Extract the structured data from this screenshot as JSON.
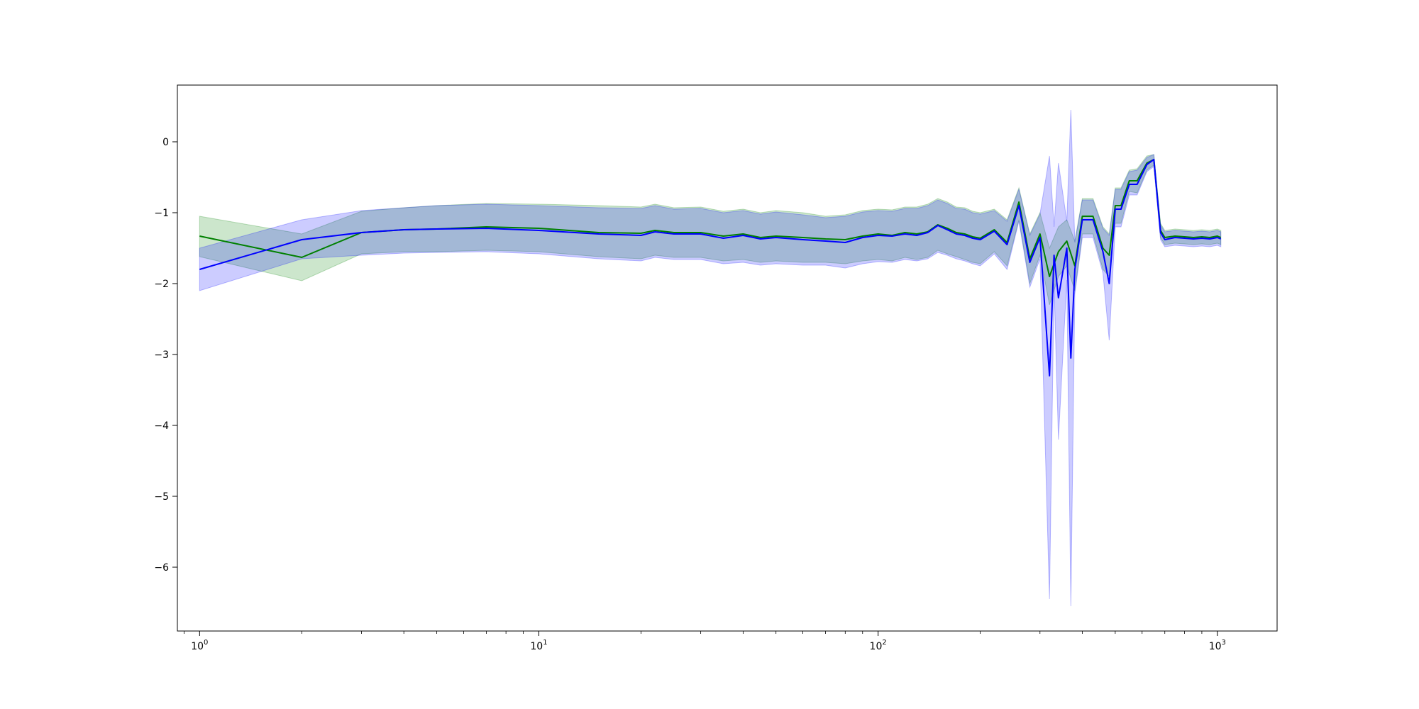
{
  "chart_data": {
    "type": "line",
    "title": "",
    "xlabel": "",
    "ylabel": "",
    "xscale": "log",
    "xlim": [
      0.86,
      1500
    ],
    "ylim": [
      -6.9,
      0.8
    ],
    "grid": false,
    "legend": "none",
    "x_major_ticks": [
      {
        "value": 1,
        "base": "10",
        "exp": "0"
      },
      {
        "value": 10,
        "base": "10",
        "exp": "1"
      },
      {
        "value": 100,
        "base": "10",
        "exp": "2"
      },
      {
        "value": 1000,
        "base": "10",
        "exp": "3"
      }
    ],
    "y_ticks": [
      {
        "value": 0,
        "label": "0"
      },
      {
        "value": -1,
        "label": "−1"
      },
      {
        "value": -2,
        "label": "−2"
      },
      {
        "value": -3,
        "label": "−3"
      },
      {
        "value": -4,
        "label": "−4"
      },
      {
        "value": -5,
        "label": "−5"
      },
      {
        "value": -6,
        "label": "−6"
      }
    ],
    "series": [
      {
        "color": "#008000",
        "band_color": "#008000",
        "x": [
          1,
          2,
          3,
          4,
          5,
          7,
          10,
          15,
          20,
          22,
          25,
          30,
          35,
          40,
          45,
          50,
          60,
          70,
          80,
          90,
          100,
          110,
          120,
          130,
          140,
          150,
          160,
          170,
          180,
          190,
          200,
          220,
          240,
          260,
          280,
          300,
          320,
          340,
          360,
          380,
          400,
          430,
          460,
          480,
          500,
          520,
          550,
          580,
          620,
          650,
          680,
          700,
          750,
          800,
          850,
          900,
          950,
          1000,
          1024
        ],
        "y": [
          -1.33,
          -1.63,
          -1.28,
          -1.24,
          -1.23,
          -1.2,
          -1.22,
          -1.28,
          -1.29,
          -1.25,
          -1.28,
          -1.28,
          -1.33,
          -1.3,
          -1.35,
          -1.33,
          -1.35,
          -1.37,
          -1.38,
          -1.33,
          -1.3,
          -1.32,
          -1.28,
          -1.3,
          -1.27,
          -1.17,
          -1.22,
          -1.28,
          -1.3,
          -1.34,
          -1.36,
          -1.24,
          -1.42,
          -0.85,
          -1.65,
          -1.3,
          -1.9,
          -1.55,
          -1.4,
          -1.75,
          -1.05,
          -1.05,
          -1.5,
          -1.6,
          -0.9,
          -0.9,
          -0.55,
          -0.55,
          -0.3,
          -0.25,
          -1.25,
          -1.35,
          -1.33,
          -1.34,
          -1.35,
          -1.34,
          -1.35,
          -1.33,
          -1.35
        ],
        "upper": [
          -1.05,
          -1.3,
          -0.98,
          -0.93,
          -0.9,
          -0.87,
          -0.88,
          -0.9,
          -0.92,
          -0.88,
          -0.93,
          -0.92,
          -0.98,
          -0.95,
          -1.0,
          -0.97,
          -1.0,
          -1.05,
          -1.03,
          -0.97,
          -0.95,
          -0.96,
          -0.92,
          -0.92,
          -0.88,
          -0.8,
          -0.85,
          -0.92,
          -0.93,
          -0.98,
          -1.0,
          -0.95,
          -1.1,
          -0.65,
          -1.3,
          -1.0,
          -1.5,
          -1.2,
          -1.1,
          -1.4,
          -0.8,
          -0.8,
          -1.2,
          -1.3,
          -0.65,
          -0.65,
          -0.4,
          -0.38,
          -0.2,
          -0.18,
          -1.15,
          -1.25,
          -1.23,
          -1.24,
          -1.25,
          -1.24,
          -1.25,
          -1.23,
          -1.25
        ],
        "lower": [
          -1.62,
          -1.96,
          -1.58,
          -1.55,
          -1.55,
          -1.53,
          -1.55,
          -1.62,
          -1.65,
          -1.6,
          -1.63,
          -1.63,
          -1.68,
          -1.66,
          -1.7,
          -1.68,
          -1.7,
          -1.7,
          -1.72,
          -1.68,
          -1.66,
          -1.68,
          -1.63,
          -1.66,
          -1.63,
          -1.53,
          -1.58,
          -1.62,
          -1.66,
          -1.7,
          -1.72,
          -1.55,
          -1.75,
          -1.1,
          -2.0,
          -1.6,
          -2.3,
          -1.9,
          -1.75,
          -2.1,
          -1.3,
          -1.3,
          -1.8,
          -1.9,
          -1.15,
          -1.15,
          -0.7,
          -0.72,
          -0.4,
          -0.33,
          -1.35,
          -1.45,
          -1.43,
          -1.44,
          -1.45,
          -1.44,
          -1.45,
          -1.43,
          -1.45
        ]
      },
      {
        "color": "#0000ff",
        "band_color": "#0000ff",
        "x": [
          1,
          2,
          3,
          4,
          5,
          7,
          10,
          15,
          20,
          22,
          25,
          30,
          35,
          40,
          45,
          50,
          60,
          70,
          80,
          90,
          100,
          110,
          120,
          130,
          140,
          150,
          160,
          170,
          180,
          190,
          200,
          220,
          240,
          260,
          280,
          300,
          320,
          330,
          340,
          360,
          370,
          380,
          400,
          430,
          460,
          480,
          500,
          520,
          550,
          580,
          620,
          650,
          680,
          700,
          750,
          800,
          850,
          900,
          950,
          1000,
          1024
        ],
        "y": [
          -1.8,
          -1.38,
          -1.28,
          -1.24,
          -1.23,
          -1.22,
          -1.25,
          -1.3,
          -1.32,
          -1.27,
          -1.3,
          -1.3,
          -1.36,
          -1.32,
          -1.37,
          -1.35,
          -1.38,
          -1.4,
          -1.42,
          -1.35,
          -1.32,
          -1.33,
          -1.3,
          -1.32,
          -1.28,
          -1.18,
          -1.24,
          -1.3,
          -1.32,
          -1.36,
          -1.38,
          -1.26,
          -1.45,
          -0.9,
          -1.7,
          -1.35,
          -3.3,
          -1.6,
          -2.2,
          -1.5,
          -3.05,
          -1.8,
          -1.1,
          -1.1,
          -1.55,
          -2.0,
          -0.95,
          -0.95,
          -0.6,
          -0.6,
          -0.32,
          -0.25,
          -1.28,
          -1.38,
          -1.35,
          -1.36,
          -1.37,
          -1.36,
          -1.37,
          -1.35,
          -1.37
        ],
        "upper": [
          -1.5,
          -1.1,
          -0.97,
          -0.93,
          -0.9,
          -0.88,
          -0.9,
          -0.93,
          -0.94,
          -0.9,
          -0.95,
          -0.94,
          -1.0,
          -0.97,
          -1.02,
          -0.99,
          -1.03,
          -1.07,
          -1.05,
          -0.99,
          -0.97,
          -0.98,
          -0.94,
          -0.94,
          -0.9,
          -0.82,
          -0.87,
          -0.94,
          -0.95,
          -1.0,
          -1.02,
          -0.97,
          -1.12,
          -0.67,
          -1.32,
          -1.02,
          -0.2,
          -1.2,
          -0.3,
          -1.12,
          0.45,
          -1.42,
          -0.82,
          -0.82,
          -1.22,
          -1.32,
          -0.67,
          -0.67,
          -0.42,
          -0.4,
          -0.22,
          -0.18,
          -1.17,
          -1.27,
          -1.25,
          -1.26,
          -1.27,
          -1.26,
          -1.27,
          -1.25,
          -1.27
        ],
        "lower": [
          -2.1,
          -1.65,
          -1.6,
          -1.57,
          -1.56,
          -1.55,
          -1.58,
          -1.65,
          -1.68,
          -1.63,
          -1.66,
          -1.66,
          -1.72,
          -1.7,
          -1.74,
          -1.72,
          -1.74,
          -1.74,
          -1.78,
          -1.72,
          -1.69,
          -1.7,
          -1.66,
          -1.68,
          -1.65,
          -1.56,
          -1.6,
          -1.65,
          -1.68,
          -1.72,
          -1.75,
          -1.58,
          -1.8,
          -1.12,
          -2.05,
          -1.65,
          -6.45,
          -2.0,
          -4.2,
          -1.95,
          -6.55,
          -2.15,
          -1.35,
          -1.35,
          -1.85,
          -2.8,
          -1.2,
          -1.2,
          -0.75,
          -0.75,
          -0.42,
          -0.35,
          -1.38,
          -1.48,
          -1.46,
          -1.47,
          -1.48,
          -1.47,
          -1.48,
          -1.46,
          -1.48
        ]
      }
    ]
  }
}
